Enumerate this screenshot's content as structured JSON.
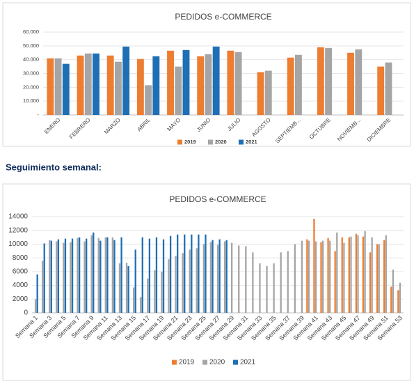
{
  "heading": "Seguimiento semanal:",
  "chart_data": [
    {
      "type": "bar",
      "title": "PEDIDOS e-COMMERCE",
      "categories": [
        "ENERO",
        "FEBRERO",
        "MARZO",
        "ABRIL",
        "MAYO",
        "JUNIO",
        "JULIO",
        "AGOSTO",
        "SEPTIEMB...",
        "OCTUBRE",
        "NOVIEMB...",
        "DICIEMBRE"
      ],
      "series": [
        {
          "name": "2019",
          "color": "#ED7D31",
          "values": [
            41000,
            43000,
            43000,
            40500,
            46500,
            42500,
            46500,
            31000,
            41500,
            49000,
            45000,
            35000
          ]
        },
        {
          "name": "2020",
          "color": "#A5A5A5",
          "values": [
            41000,
            44500,
            38500,
            21500,
            35000,
            44000,
            45500,
            32000,
            43500,
            48500,
            47500,
            38000
          ]
        },
        {
          "name": "2021",
          "color": "#1F6FB5",
          "values": [
            37000,
            44500,
            49500,
            42500,
            47000,
            49500,
            null,
            null,
            null,
            null,
            null,
            null
          ]
        }
      ],
      "ylim": [
        0,
        60000
      ],
      "yticks": [
        {
          "value": 0,
          "label": "-"
        },
        {
          "value": 10000,
          "label": "10.000"
        },
        {
          "value": 20000,
          "label": "20.000"
        },
        {
          "value": 30000,
          "label": "30.000"
        },
        {
          "value": 40000,
          "label": "40.000"
        },
        {
          "value": 50000,
          "label": "50.000"
        },
        {
          "value": 60000,
          "label": "60.000"
        }
      ],
      "grid": true,
      "legend": "bottom"
    },
    {
      "type": "bar",
      "title": "PEDIDOS e-COMMERCE",
      "categories": [
        "Semana 1",
        null,
        "Semana 3",
        null,
        "Semana 5",
        null,
        "Semana 7",
        null,
        "Semana 9",
        null,
        "Semana 11",
        null,
        "Semana 13",
        null,
        "Semana 15",
        null,
        "Semana 17",
        null,
        "Semana 19",
        null,
        "Semana 21",
        null,
        "Semana 23",
        null,
        "Semana 25",
        null,
        "Semana 27",
        null,
        "Semana 29",
        null,
        "Semana 31",
        null,
        "Semana 33",
        null,
        "Semana 35",
        null,
        "Semana 37",
        null,
        "Semana 39",
        null,
        "Semana 41",
        null,
        "Semana 43",
        null,
        "Semana 45",
        null,
        "Semana 47",
        null,
        "Semana 49",
        null,
        "Semana 51",
        null,
        "Semana 53"
      ],
      "series": [
        {
          "name": "2019",
          "color": "#ED7D31",
          "values": [
            null,
            null,
            null,
            null,
            null,
            null,
            null,
            null,
            null,
            null,
            null,
            null,
            null,
            null,
            null,
            null,
            null,
            null,
            null,
            null,
            null,
            null,
            null,
            null,
            null,
            null,
            null,
            null,
            null,
            null,
            null,
            null,
            null,
            null,
            null,
            null,
            null,
            null,
            null,
            10700,
            13700,
            10300,
            10900,
            9000,
            11000,
            11000,
            11500,
            11100,
            8800,
            10000,
            10600,
            3800,
            3300
          ]
        },
        {
          "name": "2020",
          "color": "#A5A5A5",
          "values": [
            2000,
            7600,
            10600,
            10400,
            10200,
            10300,
            10900,
            10400,
            11300,
            10900,
            11000,
            11000,
            7200,
            7300,
            3700,
            2300,
            5000,
            6200,
            6000,
            7800,
            8300,
            8700,
            9200,
            9400,
            10000,
            10300,
            9900,
            10400,
            10200,
            9800,
            9700,
            8800,
            7200,
            6800,
            7200,
            8800,
            9000,
            10000,
            10500,
            10500,
            10400,
            10500,
            10500,
            11700,
            10200,
            11100,
            11300,
            11900,
            11000,
            10000,
            11300,
            6300,
            4400
          ]
        },
        {
          "name": "2021",
          "color": "#1F6FB5",
          "values": [
            5600,
            10100,
            10500,
            10700,
            10800,
            10800,
            11000,
            10800,
            11700,
            10500,
            11000,
            10600,
            11000,
            6800,
            9200,
            11000,
            10800,
            11000,
            10700,
            11200,
            11400,
            11400,
            11400,
            11400,
            11400,
            10600,
            10700,
            10600,
            null,
            null,
            null,
            null,
            null,
            null,
            null,
            null,
            null,
            null,
            null,
            null,
            null,
            null,
            null,
            null,
            null,
            null,
            null,
            null,
            null,
            null,
            null,
            null,
            null
          ]
        }
      ],
      "ylim": [
        0,
        14000
      ],
      "yticks": [
        0,
        2000,
        4000,
        6000,
        8000,
        10000,
        12000,
        14000
      ],
      "grid": true,
      "legend": "bottom"
    }
  ]
}
